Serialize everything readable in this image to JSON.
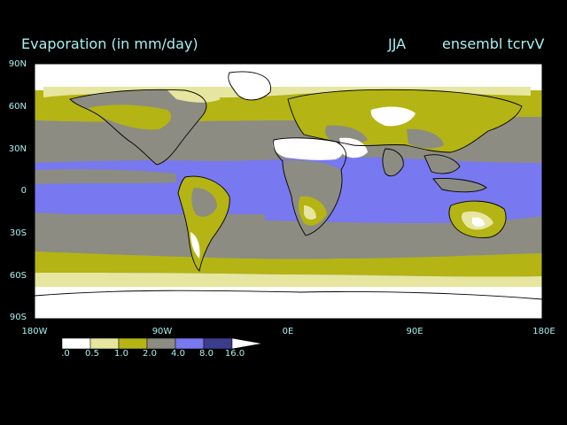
{
  "header": {
    "title": "Evaporation (in mm/day)",
    "season": "JJA",
    "run": "ensembl tcrvV"
  },
  "axes": {
    "lat_labels": [
      "90N",
      "60N",
      "30N",
      "0",
      "30S",
      "60S",
      "90S"
    ],
    "lon_labels": [
      "180W",
      "90W",
      "0E",
      "90E",
      "180E"
    ]
  },
  "legend": {
    "labels": [
      ".0",
      "0.5",
      "1.0",
      "2.0",
      "4.0",
      "8.0",
      "16.0"
    ],
    "colors": [
      "#ffffff",
      "#e6e6a0",
      "#b4b414",
      "#8c8c82",
      "#7878f0",
      "#3c3c8c"
    ]
  },
  "map": {
    "ocean_color": "#7878f0",
    "coast_color": "#000000"
  }
}
